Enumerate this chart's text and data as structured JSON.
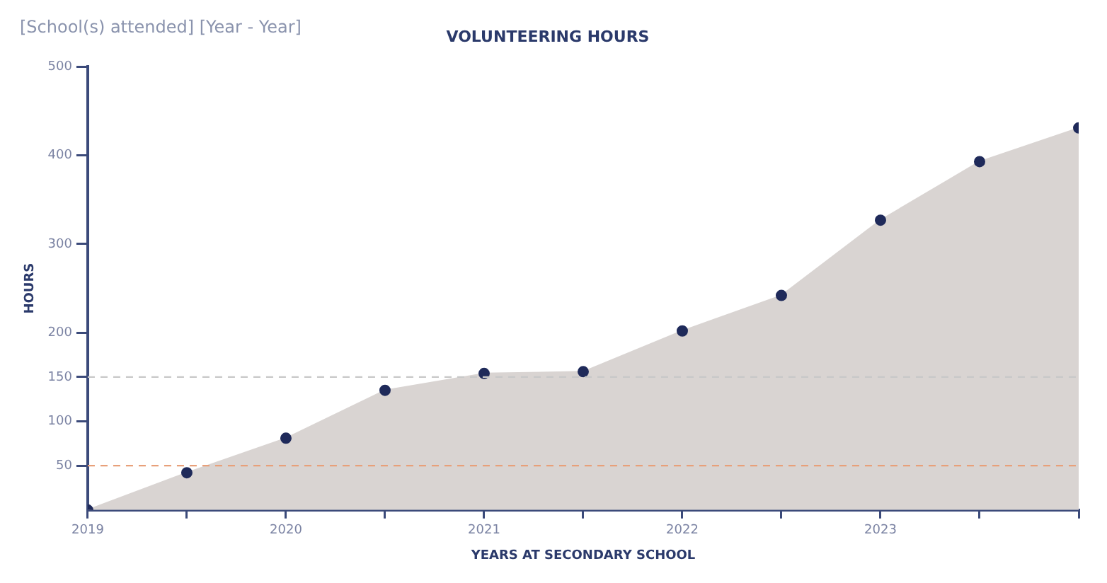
{
  "chart_data": {
    "type": "area",
    "title": "VOLUNTEERING HOURS",
    "xlabel": "YEARS AT SECONDARY SCHOOL",
    "ylabel": "HOURS",
    "annotations": [
      "[School(s) attended] [Year - Year]"
    ],
    "x": [
      2019,
      2019.5,
      2020,
      2020.5,
      2021,
      2021.5,
      2022,
      2022.5,
      2023,
      2023.5,
      2024
    ],
    "series": [
      {
        "color": "#d9d4d2",
        "values": [
          0,
          42,
          81,
          135,
          154,
          156,
          202,
          242,
          327,
          393,
          431
        ]
      }
    ],
    "marker": "circle",
    "xlim": [
      2019,
      2024
    ],
    "xticks": [
      2019,
      {
        "value": 2019.5,
        "label": null
      },
      2020,
      {
        "value": 2020.5,
        "label": null
      },
      2021,
      {
        "value": 2021.5,
        "label": null
      },
      2022,
      {
        "value": 2022.5,
        "label": null
      },
      2023,
      {
        "value": 2023.5,
        "label": null
      },
      {
        "value": 2024,
        "label": null
      }
    ],
    "ylim": [
      0,
      500
    ],
    "yticks": [
      50,
      100,
      150,
      200,
      300,
      400,
      500
    ],
    "ref_lines": [
      {
        "axis": "y",
        "value": 50,
        "color": "#e8a07a",
        "line_style": "dashed"
      },
      {
        "axis": "y",
        "value": 150,
        "color": "#c8c8c8",
        "line_style": "dashed"
      }
    ],
    "grid": false,
    "legend": false
  }
}
